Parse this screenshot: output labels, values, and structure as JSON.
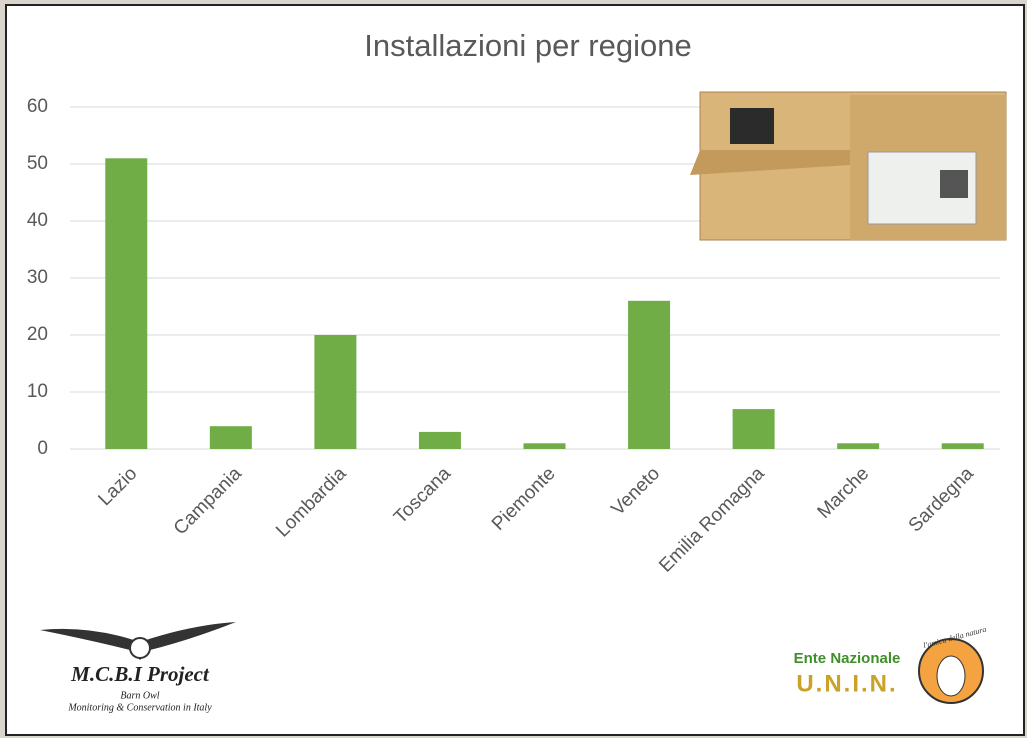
{
  "chart_data": {
    "type": "bar",
    "title": "Installazioni per regione",
    "categories": [
      "Lazio",
      "Campania",
      "Lombardia",
      "Toscana",
      "Piemonte",
      "Veneto",
      "Emilia Romagna",
      "Marche",
      "Sardegna"
    ],
    "values": [
      51,
      4,
      20,
      3,
      1,
      26,
      7,
      1,
      1
    ],
    "color": "#70ad47",
    "ylim": [
      0,
      60
    ],
    "yticks": [
      0,
      10,
      20,
      30,
      40,
      50,
      60
    ],
    "grid": true
  },
  "logos": {
    "left_title": "M.C.B.I Project",
    "left_subtitle": "Barn Owl",
    "left_caption": "Monitoring & Conservation in Italy",
    "right_top": "Ente Nazionale",
    "right_name": "U.N.I.N.",
    "right_motto": "l'amica della natura"
  }
}
